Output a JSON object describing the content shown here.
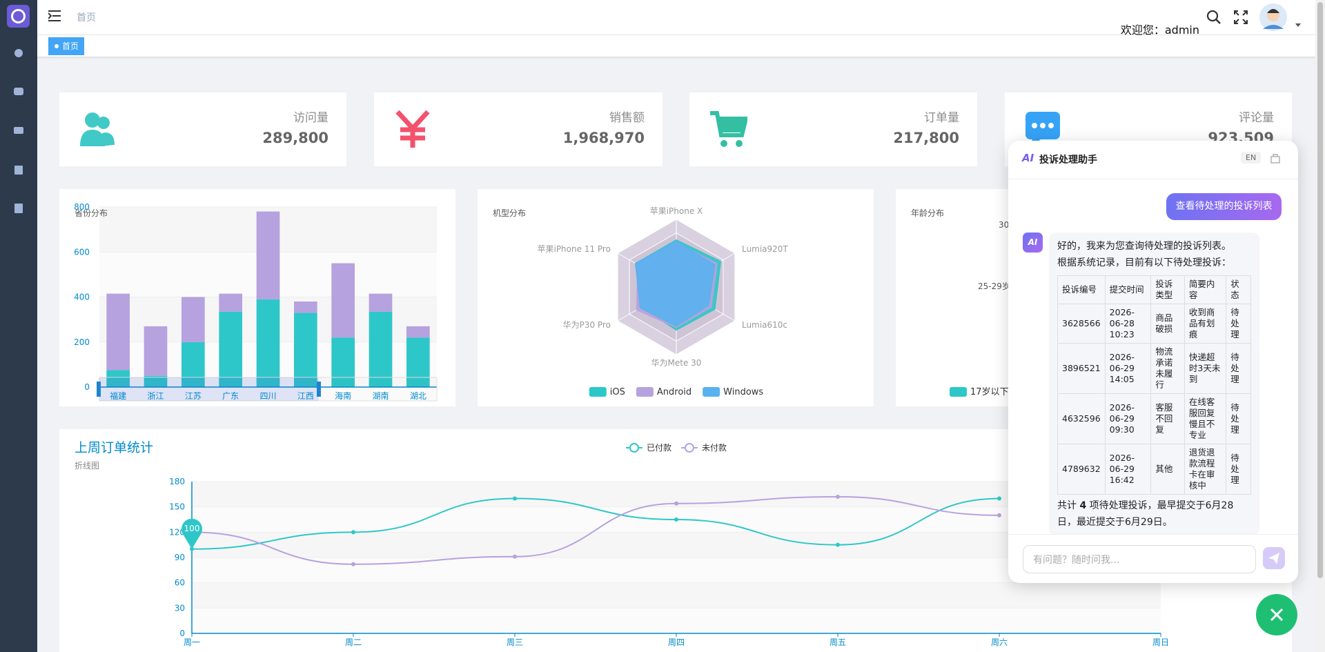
{
  "header": {
    "breadcrumb": "首页",
    "welcome": "欢迎您：admin"
  },
  "tags": [
    "首页"
  ],
  "stats": [
    {
      "label": "访问量",
      "value": "289,800"
    },
    {
      "label": "销售额",
      "value": "1,968,970"
    },
    {
      "label": "订单量",
      "value": "217,800"
    },
    {
      "label": "评论量",
      "value": "923,509"
    }
  ],
  "chart_data": [
    {
      "type": "bar",
      "title": "省份分布",
      "stacked": true,
      "categories": [
        "福建",
        "浙江",
        "江苏",
        "广东",
        "四川",
        "江西",
        "海南",
        "湖南",
        "湖北"
      ],
      "series": [
        {
          "color": "#2ec7c9",
          "values": [
            75,
            50,
            200,
            335,
            390,
            330,
            220,
            335,
            220
          ]
        },
        {
          "color": "#b6a2de",
          "values": [
            340,
            220,
            200,
            80,
            390,
            50,
            330,
            80,
            50
          ]
        }
      ],
      "ylim": [
        0,
        800
      ],
      "yticks": [
        0,
        200,
        400,
        600,
        800
      ],
      "grid": true
    },
    {
      "type": "radar",
      "title": "机型分布",
      "indicators": [
        "苹果iPhone X",
        "Lumia920T",
        "Lumia610c",
        "华为Mete 30",
        "华为P30 Pro",
        "苹果iPhone 11 Pro"
      ],
      "rlim": [
        0,
        100
      ],
      "series": [
        {
          "name": "iOS",
          "color": "#2ec7c9",
          "values": [
            70,
            76,
            66,
            64,
            60,
            70
          ]
        },
        {
          "name": "Android",
          "color": "#b6a2de",
          "values": [
            66,
            70,
            60,
            60,
            68,
            66
          ]
        },
        {
          "name": "Windows",
          "color": "#5ab1ef",
          "values": [
            68,
            66,
            55,
            58,
            62,
            70
          ]
        }
      ],
      "legend": "bottom"
    },
    {
      "type": "pie",
      "title": "年龄分布",
      "labels": [
        "30",
        "25-29岁"
      ],
      "legend_items": [
        {
          "name": "17岁以下",
          "color": "#2ec7c9"
        }
      ]
    },
    {
      "type": "line",
      "title": "上周订单统计",
      "subtitle": "折线图",
      "categories": [
        "周一",
        "周二",
        "周三",
        "周四",
        "周五",
        "周六",
        "周日"
      ],
      "series": [
        {
          "name": "已付款",
          "color": "#2ec7c9",
          "values": [
            100,
            120,
            160,
            135,
            105,
            160,
            null
          ]
        },
        {
          "name": "未付款",
          "color": "#b6a2de",
          "values": [
            120,
            82,
            91,
            154,
            162,
            140,
            null
          ]
        }
      ],
      "ylim": [
        0,
        180
      ],
      "yticks": [
        0,
        30,
        60,
        90,
        120,
        150,
        180
      ],
      "grid": true,
      "mark_point": 100,
      "legend": "top"
    }
  ],
  "assistant": {
    "title": "投诉处理助手",
    "badge": "AI",
    "lang_button": "EN",
    "user_message": "查看待处理的投诉列表",
    "reply_lines": [
      "好的，我来为您查询待处理的投诉列表。",
      "根据系统记录，目前有以下待处理投诉："
    ],
    "table": {
      "header": [
        "投诉编号",
        "提交时间",
        "投诉类型",
        "简要内容",
        "状态"
      ],
      "rows": [
        [
          "3628566",
          "2026-06-28 10:23",
          "商品破损",
          "收到商品有划痕",
          "待处理"
        ],
        [
          "3896521",
          "2026-06-29 14:05",
          "物流承诺未履行",
          "快递超时3天未到",
          "待处理"
        ],
        [
          "4632596",
          "2026-06-29 09:30",
          "客服不回复",
          "在线客服回复慢且不专业",
          "待处理"
        ],
        [
          "4789632",
          "2026-06-29 16:42",
          "其他",
          "退货退款流程卡在审核中",
          "待处理"
        ]
      ]
    },
    "summary": [
      "共计 ",
      "4",
      " 项待处理投诉，最早提交于6月28日，最近提交于6月29日。"
    ],
    "placeholder": "有问题？随时问我..."
  }
}
